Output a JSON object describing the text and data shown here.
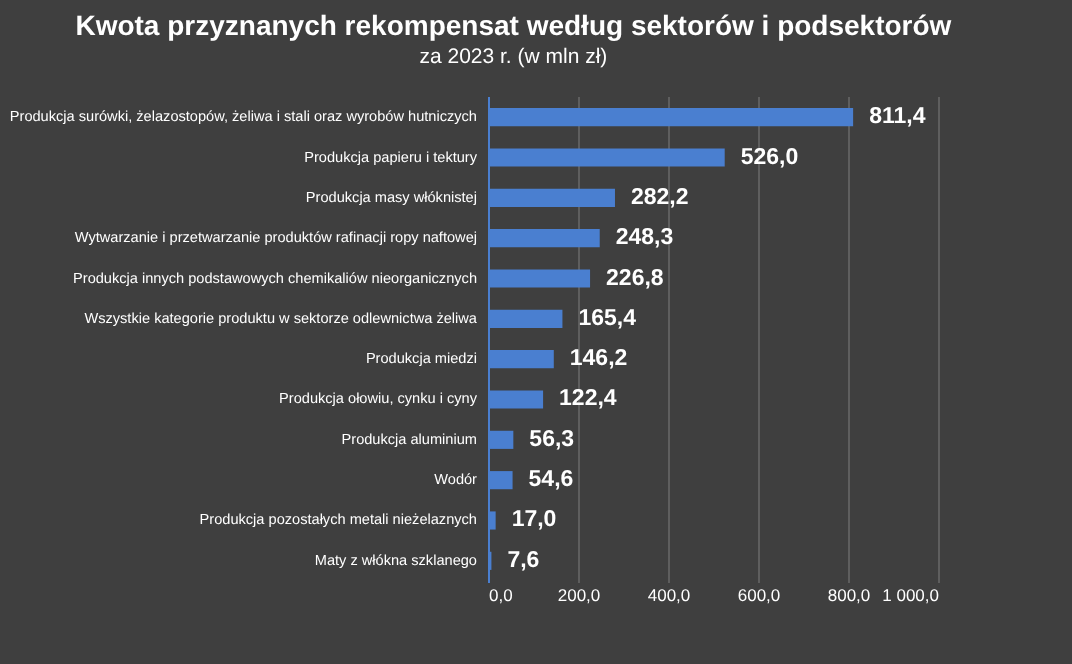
{
  "chart_data": {
    "type": "bar",
    "orientation": "horizontal",
    "title": "Kwota przyznanych rekompensat według sektorów i podsektorów",
    "subtitle": "za 2023 r. (w mln zł)",
    "categories": [
      "Produkcja surówki, żelazostopów, żeliwa i stali oraz wyrobów hutniczych",
      "Produkcja papieru i tektury",
      "Produkcja masy włóknistej",
      "Wytwarzanie i przetwarzanie produktów rafinacji ropy naftowej",
      "Produkcja innych podstawowych chemikaliów nieorganicznych",
      "Wszystkie kategorie produktu w sektorze odlewnictwa żeliwa",
      "Produkcja miedzi",
      "Produkcja ołowiu, cynku i cyny",
      "Produkcja aluminium",
      "Wodór",
      "Produkcja pozostałych metali nieżelaznych",
      "Maty z włókna szklanego"
    ],
    "values": [
      811.4,
      526.0,
      282.2,
      248.3,
      226.8,
      165.4,
      146.2,
      122.4,
      56.3,
      54.6,
      17.0,
      7.6
    ],
    "value_labels": [
      "811,4",
      "526,0",
      "282,2",
      "248,3",
      "226,8",
      "165,4",
      "146,2",
      "122,4",
      "56,3",
      "54,6",
      "17,0",
      "7,6"
    ],
    "color": "#4a7fd0",
    "xlim": [
      0,
      1000
    ],
    "xticks": [
      {
        "value": 0,
        "label": "0,0"
      },
      {
        "value": 200,
        "label": "200,0"
      },
      {
        "value": 400,
        "label": "400,0"
      },
      {
        "value": 600,
        "label": "600,0"
      },
      {
        "value": 800,
        "label": "800,0"
      },
      {
        "value": 1000,
        "label": "1 000,0"
      }
    ],
    "grid": "x"
  }
}
